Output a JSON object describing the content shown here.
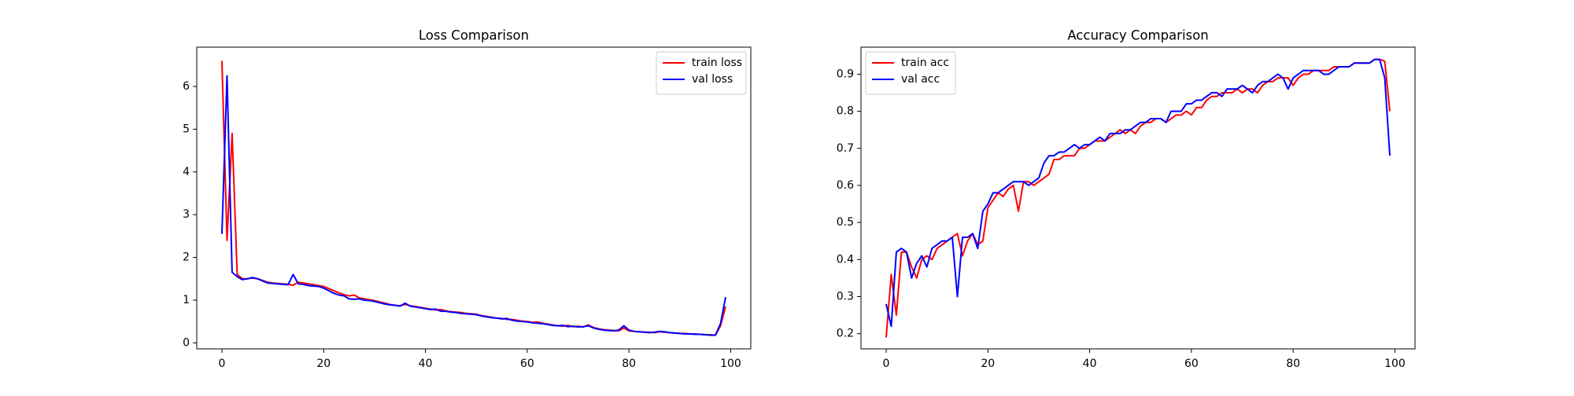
{
  "chart_data": [
    {
      "type": "line",
      "title": "Loss Comparison",
      "legend": "upper right",
      "x": [
        0,
        1,
        2,
        3,
        4,
        5,
        6,
        7,
        8,
        9,
        10,
        11,
        12,
        13,
        14,
        15,
        16,
        17,
        18,
        19,
        20,
        21,
        22,
        23,
        24,
        25,
        26,
        27,
        28,
        29,
        30,
        31,
        32,
        33,
        34,
        35,
        36,
        37,
        38,
        39,
        40,
        41,
        42,
        43,
        44,
        45,
        46,
        47,
        48,
        49,
        50,
        51,
        52,
        53,
        54,
        55,
        56,
        57,
        58,
        59,
        60,
        61,
        62,
        63,
        64,
        65,
        66,
        67,
        68,
        69,
        70,
        71,
        72,
        73,
        74,
        75,
        76,
        77,
        78,
        79,
        80,
        81,
        82,
        83,
        84,
        85,
        86,
        87,
        88,
        89,
        90,
        91,
        92,
        93,
        94,
        95,
        96,
        97,
        98,
        99
      ],
      "xlim": [
        -4.95,
        103.95
      ],
      "xticks": [
        0,
        20,
        40,
        60,
        80,
        100
      ],
      "ylim": [
        -0.14,
        6.92
      ],
      "yticks": [
        0,
        1,
        2,
        3,
        4,
        5,
        6
      ],
      "series": [
        {
          "name": "train loss",
          "color": "#ff0000",
          "values": [
            6.6,
            2.4,
            4.9,
            1.6,
            1.5,
            1.5,
            1.52,
            1.5,
            1.46,
            1.42,
            1.4,
            1.39,
            1.38,
            1.37,
            1.35,
            1.42,
            1.4,
            1.38,
            1.36,
            1.34,
            1.32,
            1.27,
            1.22,
            1.17,
            1.13,
            1.1,
            1.12,
            1.05,
            1.03,
            1.01,
            0.99,
            0.96,
            0.93,
            0.9,
            0.88,
            0.87,
            0.9,
            0.87,
            0.85,
            0.83,
            0.81,
            0.79,
            0.77,
            0.78,
            0.75,
            0.73,
            0.72,
            0.71,
            0.69,
            0.68,
            0.67,
            0.64,
            0.62,
            0.6,
            0.58,
            0.57,
            0.55,
            0.55,
            0.53,
            0.51,
            0.5,
            0.48,
            0.49,
            0.46,
            0.44,
            0.42,
            0.4,
            0.39,
            0.41,
            0.38,
            0.39,
            0.37,
            0.42,
            0.36,
            0.33,
            0.31,
            0.3,
            0.29,
            0.28,
            0.35,
            0.28,
            0.27,
            0.26,
            0.25,
            0.25,
            0.24,
            0.26,
            0.25,
            0.24,
            0.23,
            0.22,
            0.22,
            0.21,
            0.21,
            0.2,
            0.19,
            0.19,
            0.18,
            0.4,
            0.85
          ]
        },
        {
          "name": "val loss",
          "color": "#0000ff",
          "values": [
            2.55,
            6.25,
            1.65,
            1.55,
            1.48,
            1.5,
            1.53,
            1.5,
            1.45,
            1.4,
            1.39,
            1.38,
            1.37,
            1.36,
            1.6,
            1.38,
            1.37,
            1.34,
            1.33,
            1.32,
            1.28,
            1.22,
            1.16,
            1.12,
            1.1,
            1.03,
            1.02,
            1.03,
            1.0,
            0.99,
            0.97,
            0.94,
            0.91,
            0.89,
            0.88,
            0.86,
            0.93,
            0.86,
            0.84,
            0.82,
            0.8,
            0.78,
            0.79,
            0.74,
            0.74,
            0.72,
            0.71,
            0.69,
            0.68,
            0.67,
            0.66,
            0.63,
            0.61,
            0.59,
            0.58,
            0.56,
            0.57,
            0.53,
            0.51,
            0.5,
            0.49,
            0.47,
            0.46,
            0.45,
            0.43,
            0.41,
            0.4,
            0.41,
            0.38,
            0.39,
            0.37,
            0.38,
            0.4,
            0.35,
            0.32,
            0.3,
            0.29,
            0.28,
            0.3,
            0.4,
            0.3,
            0.27,
            0.26,
            0.25,
            0.24,
            0.25,
            0.27,
            0.26,
            0.24,
            0.23,
            0.22,
            0.21,
            0.21,
            0.2,
            0.2,
            0.19,
            0.18,
            0.18,
            0.45,
            1.07
          ]
        }
      ]
    },
    {
      "type": "line",
      "title": "Accuracy Comparison",
      "legend": "upper left",
      "x": [
        0,
        1,
        2,
        3,
        4,
        5,
        6,
        7,
        8,
        9,
        10,
        11,
        12,
        13,
        14,
        15,
        16,
        17,
        18,
        19,
        20,
        21,
        22,
        23,
        24,
        25,
        26,
        27,
        28,
        29,
        30,
        31,
        32,
        33,
        34,
        35,
        36,
        37,
        38,
        39,
        40,
        41,
        42,
        43,
        44,
        45,
        46,
        47,
        48,
        49,
        50,
        51,
        52,
        53,
        54,
        55,
        56,
        57,
        58,
        59,
        60,
        61,
        62,
        63,
        64,
        65,
        66,
        67,
        68,
        69,
        70,
        71,
        72,
        73,
        74,
        75,
        76,
        77,
        78,
        79,
        80,
        81,
        82,
        83,
        84,
        85,
        86,
        87,
        88,
        89,
        90,
        91,
        92,
        93,
        94,
        95,
        96,
        97,
        98,
        99
      ],
      "xlim": [
        -4.95,
        103.95
      ],
      "xticks": [
        0,
        20,
        40,
        60,
        80,
        100
      ],
      "ylim": [
        0.159,
        0.973
      ],
      "yticks": [
        0.2,
        0.3,
        0.4,
        0.5,
        0.6,
        0.7,
        0.8,
        0.9
      ],
      "series": [
        {
          "name": "train acc",
          "color": "#ff0000",
          "values": [
            0.19,
            0.36,
            0.25,
            0.42,
            0.42,
            0.38,
            0.35,
            0.4,
            0.41,
            0.4,
            0.43,
            0.44,
            0.45,
            0.46,
            0.47,
            0.41,
            0.45,
            0.47,
            0.44,
            0.45,
            0.54,
            0.56,
            0.58,
            0.57,
            0.59,
            0.6,
            0.53,
            0.61,
            0.61,
            0.6,
            0.61,
            0.62,
            0.63,
            0.67,
            0.67,
            0.68,
            0.68,
            0.68,
            0.7,
            0.7,
            0.71,
            0.72,
            0.72,
            0.72,
            0.73,
            0.74,
            0.75,
            0.74,
            0.75,
            0.74,
            0.76,
            0.77,
            0.77,
            0.78,
            0.78,
            0.77,
            0.78,
            0.79,
            0.79,
            0.8,
            0.79,
            0.81,
            0.81,
            0.83,
            0.84,
            0.84,
            0.85,
            0.85,
            0.85,
            0.86,
            0.85,
            0.86,
            0.86,
            0.85,
            0.87,
            0.88,
            0.88,
            0.89,
            0.89,
            0.89,
            0.87,
            0.89,
            0.9,
            0.9,
            0.91,
            0.91,
            0.91,
            0.91,
            0.92,
            0.92,
            0.92,
            0.92,
            0.93,
            0.93,
            0.93,
            0.93,
            0.94,
            0.94,
            0.935,
            0.8
          ]
        },
        {
          "name": "val acc",
          "color": "#0000ff",
          "values": [
            0.28,
            0.22,
            0.42,
            0.43,
            0.42,
            0.35,
            0.39,
            0.41,
            0.38,
            0.43,
            0.44,
            0.45,
            0.45,
            0.46,
            0.3,
            0.46,
            0.46,
            0.47,
            0.43,
            0.53,
            0.55,
            0.58,
            0.58,
            0.59,
            0.6,
            0.61,
            0.61,
            0.61,
            0.6,
            0.61,
            0.62,
            0.66,
            0.68,
            0.68,
            0.69,
            0.69,
            0.7,
            0.71,
            0.7,
            0.71,
            0.71,
            0.72,
            0.73,
            0.72,
            0.74,
            0.74,
            0.74,
            0.75,
            0.75,
            0.76,
            0.77,
            0.77,
            0.78,
            0.78,
            0.78,
            0.77,
            0.8,
            0.8,
            0.8,
            0.82,
            0.82,
            0.83,
            0.83,
            0.84,
            0.85,
            0.85,
            0.84,
            0.86,
            0.86,
            0.86,
            0.87,
            0.86,
            0.85,
            0.87,
            0.88,
            0.88,
            0.89,
            0.9,
            0.89,
            0.86,
            0.89,
            0.9,
            0.91,
            0.91,
            0.91,
            0.91,
            0.9,
            0.9,
            0.91,
            0.92,
            0.92,
            0.92,
            0.93,
            0.93,
            0.93,
            0.93,
            0.94,
            0.94,
            0.89,
            0.68
          ]
        }
      ]
    }
  ]
}
